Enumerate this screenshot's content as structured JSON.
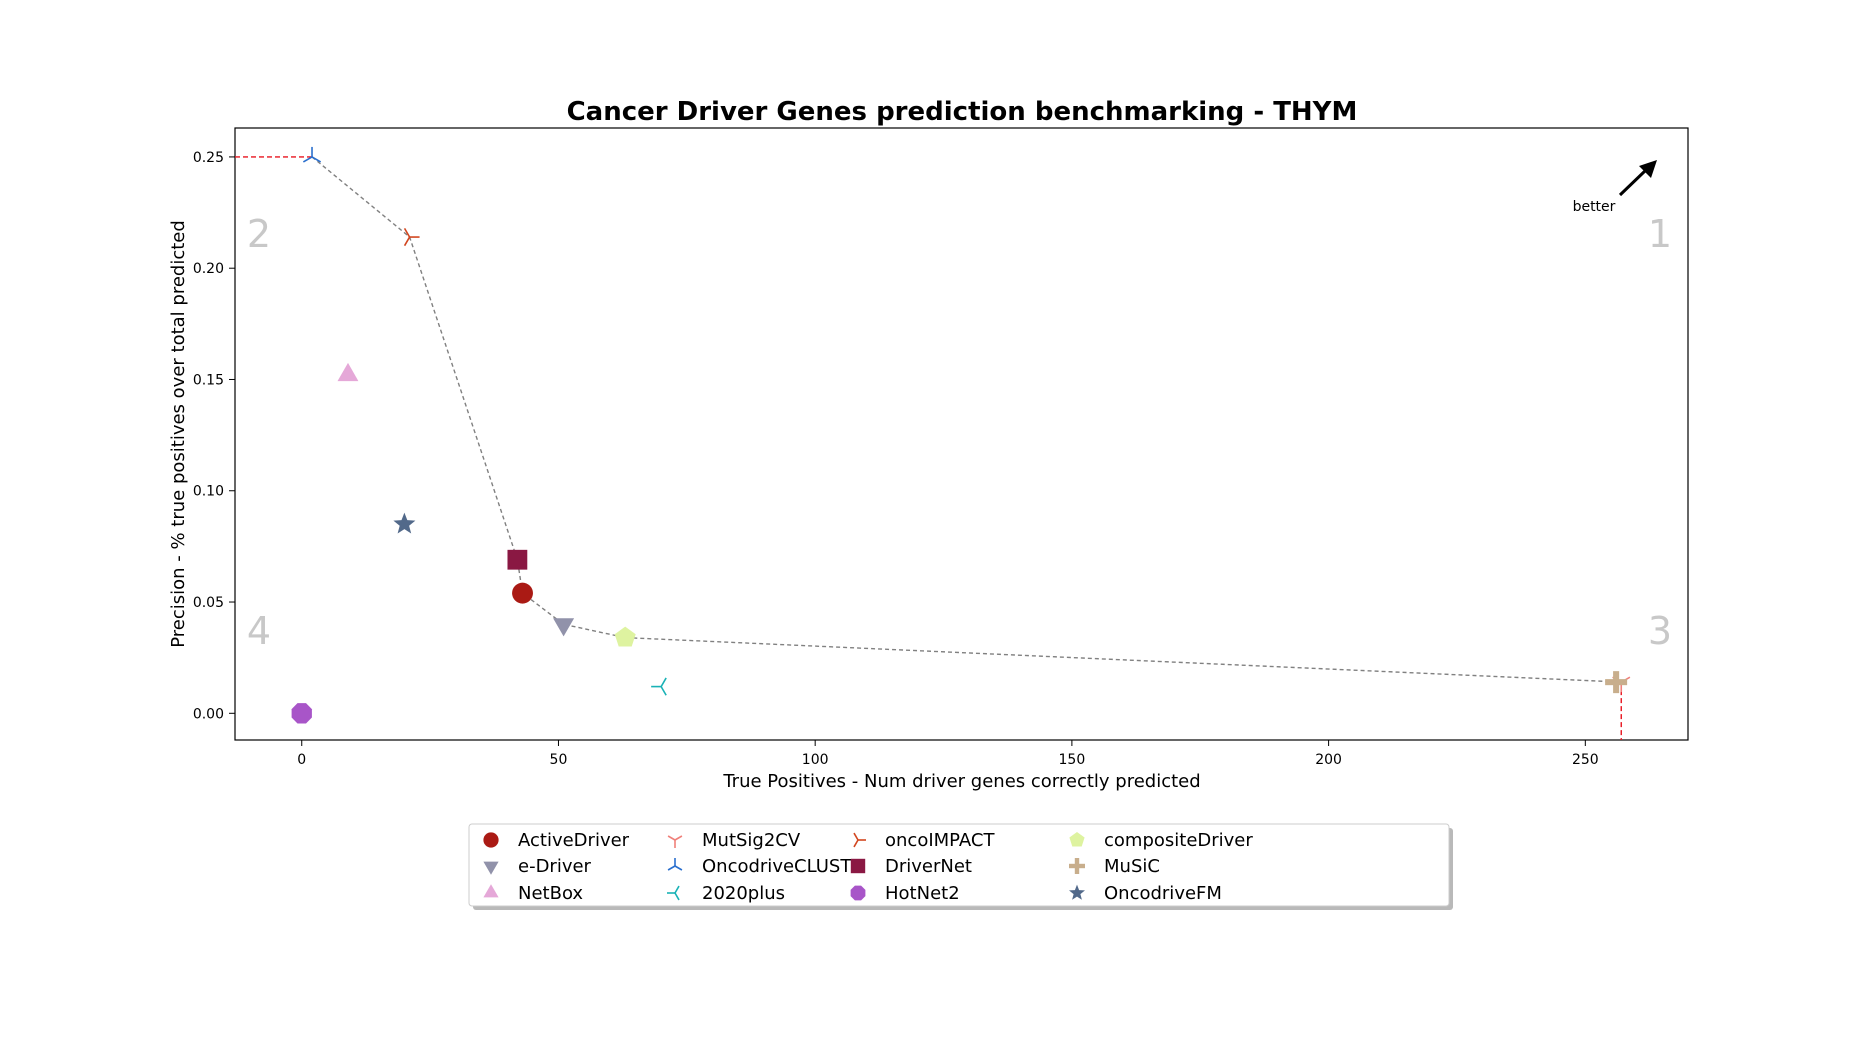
{
  "chart_data": {
    "type": "scatter",
    "title": "Cancer Driver Genes prediction benchmarking - THYM",
    "xlabel": "True Positives - Num driver genes correctly predicted",
    "ylabel": "Precision - % true positives over total predicted",
    "xlim": [
      -13,
      270
    ],
    "ylim": [
      -0.012,
      0.263
    ],
    "x_ticks": [
      0,
      50,
      100,
      150,
      200,
      250
    ],
    "y_ticks": [
      0.0,
      0.05,
      0.1,
      0.15,
      0.2,
      0.25
    ],
    "y_tick_labels": [
      "0.00",
      "0.05",
      "0.10",
      "0.15",
      "0.20",
      "0.25"
    ],
    "grid": false,
    "legend_position": "below",
    "quadrant_labels": {
      "top_right": "1",
      "top_left": "2",
      "bottom_right": "3",
      "bottom_left": "4"
    },
    "better_label": "better",
    "pareto_front": [
      {
        "x": 2,
        "y": 0.25
      },
      {
        "x": 21,
        "y": 0.214
      },
      {
        "x": 42,
        "y": 0.069
      },
      {
        "x": 43,
        "y": 0.054
      },
      {
        "x": 51,
        "y": 0.04
      },
      {
        "x": 63,
        "y": 0.034
      },
      {
        "x": 257,
        "y": 0.014
      }
    ],
    "series": [
      {
        "name": "ActiveDriver",
        "x": 43,
        "y": 0.054,
        "marker": "circle",
        "color": "#aa1a14"
      },
      {
        "name": "e-Driver",
        "x": 51,
        "y": 0.04,
        "marker": "triangle-down",
        "color": "#9192aa"
      },
      {
        "name": "NetBox",
        "x": 9,
        "y": 0.152,
        "marker": "triangle-up",
        "color": "#e5a8d8"
      },
      {
        "name": "MutSig2CV",
        "x": 257,
        "y": 0.014,
        "marker": "tri-down",
        "color": "#f0807a"
      },
      {
        "name": "OncodriveCLUST",
        "x": 2,
        "y": 0.25,
        "marker": "tri-up",
        "color": "#2a6fce"
      },
      {
        "name": "2020plus",
        "x": 70,
        "y": 0.012,
        "marker": "tri-left",
        "color": "#19b2b6"
      },
      {
        "name": "oncoIMPACT",
        "x": 21,
        "y": 0.214,
        "marker": "tri-right",
        "color": "#d2461f"
      },
      {
        "name": "DriverNet",
        "x": 42,
        "y": 0.069,
        "marker": "square",
        "color": "#8a1843"
      },
      {
        "name": "HotNet2",
        "x": 0,
        "y": 0.0,
        "marker": "octagon",
        "color": "#a855c8"
      },
      {
        "name": "compositeDriver",
        "x": 63,
        "y": 0.034,
        "marker": "pentagon",
        "color": "#def3a0"
      },
      {
        "name": "MuSiC",
        "x": 256,
        "y": 0.014,
        "marker": "plus",
        "color": "#c8ae8c"
      },
      {
        "name": "OncodriveFM",
        "x": 20,
        "y": 0.085,
        "marker": "star",
        "color": "#52698a"
      }
    ],
    "colors": {
      "pareto_line": "#808080",
      "dashed_red": "#e8141e",
      "quadrant_text": "#c8c8c8"
    }
  }
}
